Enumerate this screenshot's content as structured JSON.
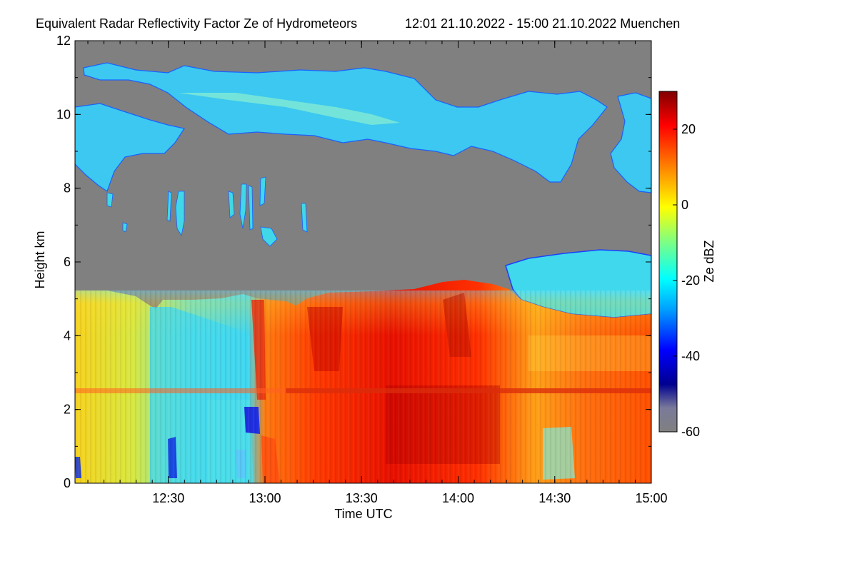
{
  "chart_data": {
    "type": "heatmap",
    "title": "Equivalent Radar Reflectivity Factor Ze of Hydrometeors",
    "subtitle": "12:01 21.10.2022 - 15:00 21.10.2022 Muenchen",
    "xlabel": "Time UTC",
    "ylabel": "Height km",
    "x_range": [
      "12:01",
      "15:00"
    ],
    "x_ticks": [
      "12:30",
      "13:00",
      "13:30",
      "14:00",
      "14:30",
      "15:00"
    ],
    "ylim": [
      0,
      12
    ],
    "y_ticks": [
      "0",
      "2",
      "4",
      "6",
      "8",
      "10",
      "12"
    ],
    "colorbar": {
      "label": "Ze dBZ",
      "range": [
        -60,
        30
      ],
      "ticks": [
        "20",
        "0",
        "-20",
        "-40",
        "-60"
      ],
      "no_signal_color": "#808080",
      "colormap": [
        "#000080",
        "#0000ff",
        "#00a0ff",
        "#00ffff",
        "#80ff80",
        "#ffff00",
        "#ff8000",
        "#ff0000",
        "#800000"
      ]
    },
    "regions": [
      {
        "name": "low-level precipitation",
        "time": [
          "12:01",
          "15:00"
        ],
        "height_km": [
          0,
          5.2
        ],
        "ze_dbz_approx": [
          -20,
          25
        ]
      },
      {
        "name": "melting layer bright band",
        "time": [
          "12:01",
          "15:00"
        ],
        "height_km": [
          2.4,
          2.6
        ],
        "ze_dbz_approx": [
          10,
          25
        ]
      },
      {
        "name": "mid-level cloud",
        "time": [
          "14:15",
          "15:00"
        ],
        "height_km": [
          4.5,
          6.3
        ],
        "ze_dbz_approx": [
          -30,
          -15
        ]
      },
      {
        "name": "isolated fall streaks",
        "time": [
          "12:25",
          "13:15"
        ],
        "height_km": [
          6.2,
          8.2
        ],
        "ze_dbz_approx": [
          -30,
          -15
        ]
      },
      {
        "name": "upper cirrus layer",
        "time": [
          "12:01",
          "15:00"
        ],
        "height_km": [
          7.6,
          11.6
        ],
        "ze_dbz_approx": [
          -35,
          -15
        ]
      }
    ]
  }
}
